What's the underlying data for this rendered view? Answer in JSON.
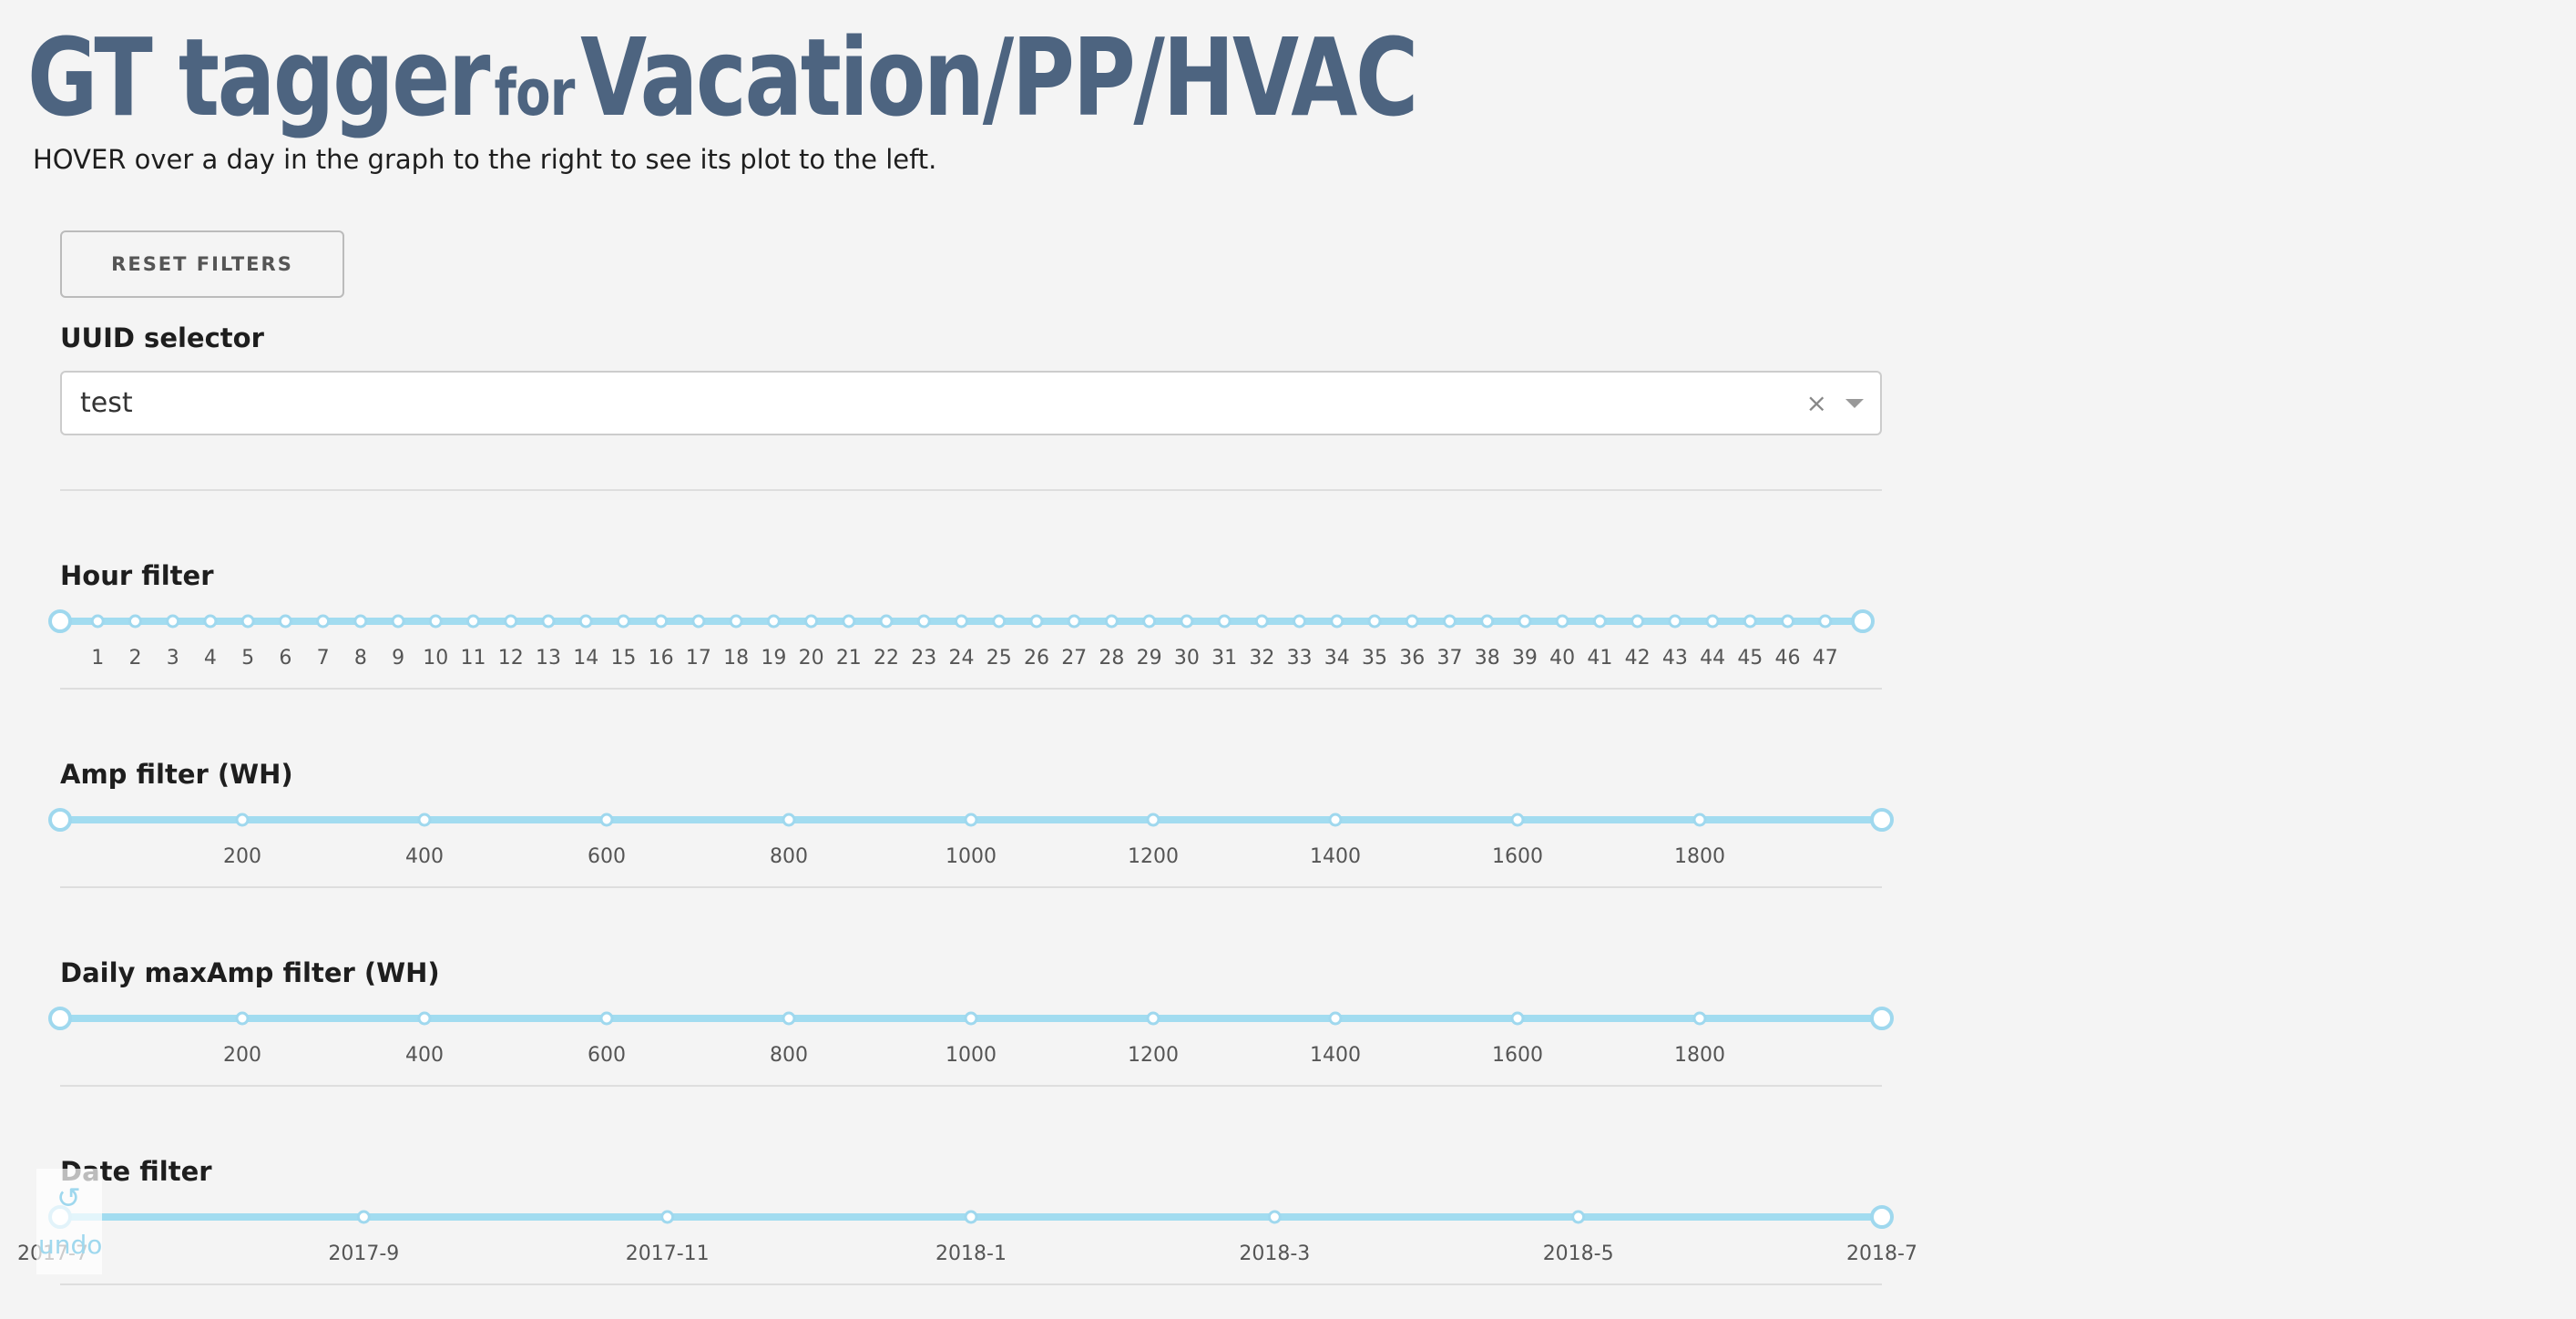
{
  "header": {
    "title_main": "GT tagger",
    "title_for": "for",
    "title_rest": "Vacation/PP/HVAC",
    "subtitle": "HOVER over a day in the graph to the right to see its plot to the left."
  },
  "controls": {
    "reset_label": "RESET FILTERS",
    "uuid": {
      "label": "UUID selector",
      "value": "test",
      "clear_glyph": "×"
    }
  },
  "filters": {
    "hour": {
      "label": "Hour filter",
      "min": 0,
      "max": 48,
      "range": [
        0,
        48
      ],
      "marks": [
        "1",
        "2",
        "3",
        "4",
        "5",
        "6",
        "7",
        "8",
        "9",
        "10",
        "11",
        "12",
        "13",
        "14",
        "15",
        "16",
        "17",
        "18",
        "19",
        "20",
        "21",
        "22",
        "23",
        "24",
        "25",
        "26",
        "27",
        "28",
        "29",
        "30",
        "31",
        "32",
        "33",
        "34",
        "35",
        "36",
        "37",
        "38",
        "39",
        "40",
        "41",
        "42",
        "43",
        "44",
        "45",
        "46",
        "47"
      ]
    },
    "amp": {
      "label": "Amp filter (WH)",
      "min": 0,
      "max": 2000,
      "range": [
        0,
        2000
      ],
      "marks": [
        "200",
        "400",
        "600",
        "800",
        "1000",
        "1200",
        "1400",
        "1600",
        "1800"
      ]
    },
    "maxamp": {
      "label": "Daily maxAmp filter (WH)",
      "min": 0,
      "max": 2000,
      "range": [
        0,
        2000
      ],
      "marks": [
        "200",
        "400",
        "600",
        "800",
        "1000",
        "1200",
        "1400",
        "1600",
        "1800"
      ]
    },
    "date": {
      "label": "Date filter",
      "min": 0,
      "max": 12,
      "range": [
        0,
        12
      ],
      "min_mark": "2017-7",
      "marks": [
        "2017-9",
        "2017-11",
        "2018-1",
        "2018-3",
        "2018-5",
        "2018-7"
      ]
    }
  },
  "undo": {
    "label": "undo",
    "icon": "undo-arrow-icon"
  },
  "colors": {
    "title": "#4d6480",
    "slider": "#a2dcf0",
    "slider_border": "#9fd8ee",
    "mark_text": "#555555"
  }
}
